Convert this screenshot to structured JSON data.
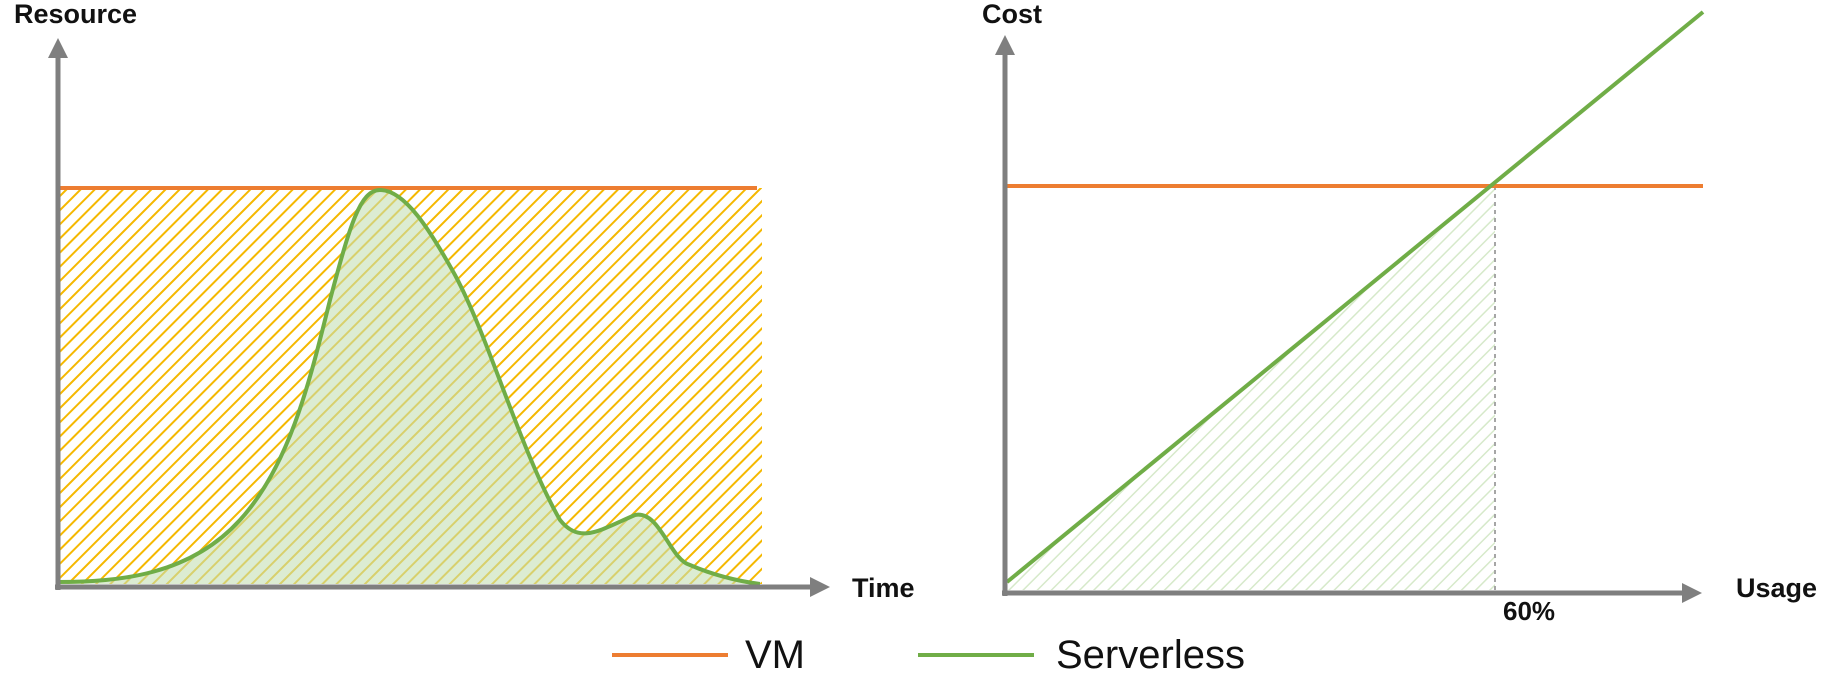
{
  "colors": {
    "vm": "#ED7D31",
    "serverless": "#70AD47",
    "vm_hatch": "#F5B800",
    "axis": "#7F7F7F",
    "guide": "#A6A6A6"
  },
  "left_panel": {
    "y_label": "Resource",
    "x_label": "Time"
  },
  "right_panel": {
    "y_label": "Cost",
    "x_label": "Usage",
    "breakeven_label": "60%"
  },
  "legend": {
    "vm_label": "VM",
    "serverless_label": "Serverless"
  }
}
